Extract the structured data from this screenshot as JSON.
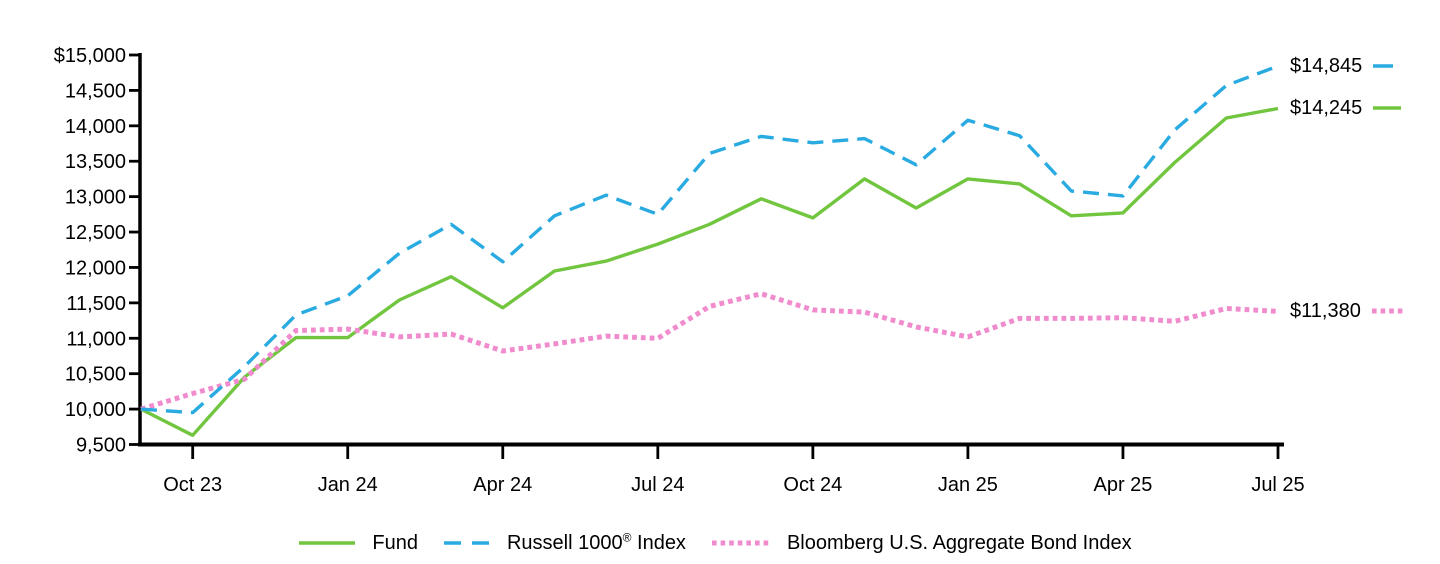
{
  "chart_data": {
    "type": "line",
    "title": "",
    "ylim": [
      9500,
      15000
    ],
    "y_ticks": [
      {
        "value": 15000,
        "label": "$15,000"
      },
      {
        "value": 14500,
        "label": "14,500"
      },
      {
        "value": 14000,
        "label": "14,000"
      },
      {
        "value": 13500,
        "label": "13,500"
      },
      {
        "value": 13000,
        "label": "13,000"
      },
      {
        "value": 12500,
        "label": "12,500"
      },
      {
        "value": 12000,
        "label": "12,000"
      },
      {
        "value": 11500,
        "label": "11,500"
      },
      {
        "value": 11000,
        "label": "11,000"
      },
      {
        "value": 10500,
        "label": "10,500"
      },
      {
        "value": 10000,
        "label": "10,000"
      },
      {
        "value": 9500,
        "label": "9,500"
      }
    ],
    "x_ticks": [
      {
        "index": 1,
        "label": "Oct 23"
      },
      {
        "index": 4,
        "label": "Jan 24"
      },
      {
        "index": 7,
        "label": "Apr 24"
      },
      {
        "index": 10,
        "label": "Jul 24"
      },
      {
        "index": 13,
        "label": "Oct 24"
      },
      {
        "index": 16,
        "label": "Jan 25"
      },
      {
        "index": 19,
        "label": "Apr 25"
      },
      {
        "index": 22,
        "label": "Jul 25"
      }
    ],
    "grid": false,
    "legend_position": "bottom",
    "draw_order": [
      0,
      2,
      1
    ],
    "series": [
      {
        "name": "Fund",
        "key": "fund",
        "color": "#72C63F",
        "style": "solid",
        "end_label": "$14,245",
        "values": [
          10000,
          9630,
          10450,
          11010,
          11010,
          11540,
          11870,
          11430,
          11950,
          12090,
          12330,
          12610,
          12970,
          12700,
          13250,
          12840,
          13250,
          13180,
          12730,
          12770,
          13480,
          14110,
          14245
        ]
      },
      {
        "name": "Russell 1000® Index",
        "key": "russell-1000-index",
        "color": "#29ABE2",
        "style": "dashed",
        "end_label": "$14,845",
        "values": [
          10000,
          9950,
          10600,
          11330,
          11600,
          12200,
          12610,
          12080,
          12730,
          13020,
          12750,
          13610,
          13850,
          13760,
          13820,
          13450,
          14080,
          13860,
          13080,
          13010,
          13940,
          14570,
          14845
        ]
      },
      {
        "name": "Bloomberg U.S. Aggregate Bond Index",
        "key": "bloomberg-us-aggregate-bond-index",
        "color": "#F08CCE",
        "style": "dotted",
        "end_label": "$11,380",
        "values": [
          10000,
          10220,
          10420,
          11110,
          11130,
          11020,
          11060,
          10820,
          10920,
          11030,
          11000,
          11450,
          11630,
          11400,
          11370,
          11160,
          11020,
          11280,
          11280,
          11290,
          11240,
          11420,
          11380
        ]
      }
    ]
  },
  "legend": {
    "russell_prefix": "Russell 1000",
    "russell_reg": "®",
    "russell_suffix": " Index"
  }
}
